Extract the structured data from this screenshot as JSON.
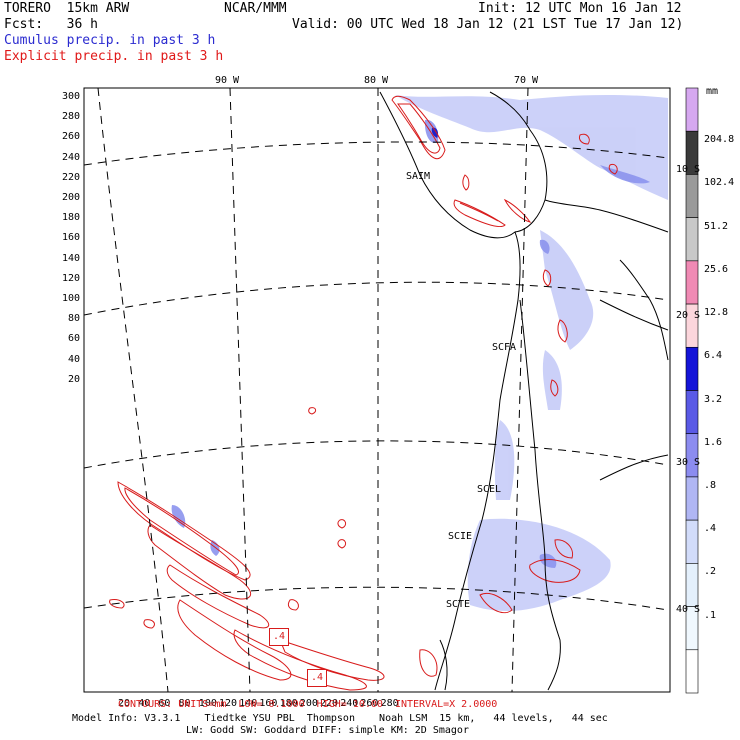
{
  "header": {
    "model": "TORERO  15km ARW",
    "org": "NCAR/MMM",
    "init": "Init: 12 UTC Mon 16 Jan 12",
    "fcst": "Fcst:   36 h",
    "valid": "Valid: 00 UTC Wed 18 Jan 12 (21 LST Tue 17 Jan 12)",
    "field1": "Cumulus precip. in past 3 h",
    "field2": "Explicit precip. in past 3 h"
  },
  "colors": {
    "field1": "#2b2bd0",
    "field2": "#e01818",
    "contour": "#d81b1b"
  },
  "map": {
    "lon_labels": [
      "90 W",
      "80 W",
      "70 W"
    ],
    "lat_labels": [
      "10 S",
      "20 S",
      "30 S",
      "40 S"
    ],
    "y_ticks": [
      "300",
      "280",
      "260",
      "240",
      "220",
      "200",
      "180",
      "160",
      "140",
      "120",
      "100",
      "80",
      "60",
      "40",
      "20"
    ],
    "x_ticks": [
      "20",
      "40",
      "60",
      "80",
      "100",
      "120",
      "140",
      "160",
      "180",
      "200",
      "220",
      "240",
      "260",
      "280"
    ],
    "cities": [
      "SAIM",
      "SCFA",
      "SCEL",
      "SCIE",
      "SCTE"
    ],
    "box_labels": [
      ".4",
      ".4"
    ]
  },
  "colorbar": {
    "unit": "mm",
    "labels": [
      "204.8",
      "102.4",
      "51.2",
      "25.6",
      "12.8",
      "6.4",
      "3.2",
      "1.6",
      ".8",
      ".4",
      ".2",
      ".1"
    ],
    "colors": [
      "#d6a8f0",
      "#3a3a3a",
      "#9a9a9a",
      "#c8c8c8",
      "#f08ab4",
      "#fcd6dc",
      "#1414d8",
      "#5a5ae6",
      "#8c8cf0",
      "#b0b6f4",
      "#d2dcfa",
      "#e4f0fc",
      "#f0f8fe",
      "#ffffff"
    ]
  },
  "footer": {
    "contours": "CONTOURS: UNITS=mm  LOW= 0.1000  HIGH= 10.00  INTERVAL=X 2.0000",
    "info1": "Model Info: V3.3.1    Tiedtke YSU PBL  Thompson    Noah LSM  15 km,   44 levels,   44 sec",
    "info2": "LW: Godd SW: Goddard DIFF: simple KM: 2D Smagor"
  }
}
